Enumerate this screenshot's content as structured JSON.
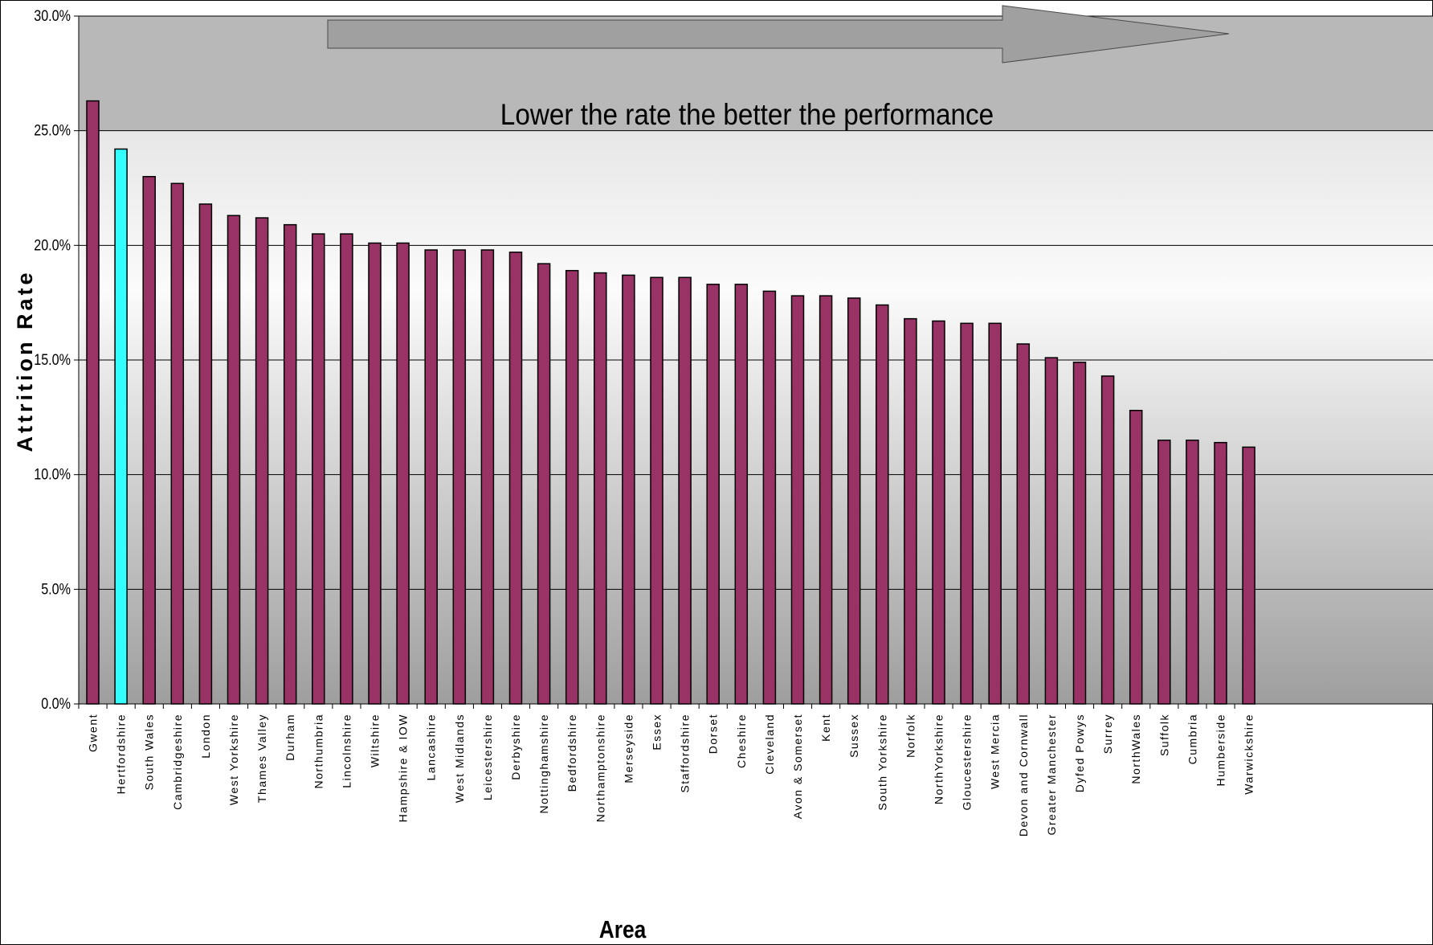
{
  "chart_data": {
    "type": "bar",
    "title": "",
    "xlabel": "Area",
    "ylabel": "Attrition Rate",
    "ylim": [
      0,
      0.3
    ],
    "yticks": [
      "0.0%",
      "5.0%",
      "10.0%",
      "15.0%",
      "20.0%",
      "25.0%",
      "30.0%"
    ],
    "grid": true,
    "annotation": "Lower the rate the better the performance",
    "colors": {
      "bar": "#993366",
      "highlight": "#33FFFF",
      "band": "#b8b8b8"
    },
    "highlight_category": "Hertfordshire",
    "categories": [
      "Gwent",
      "Hertfordshire",
      "South Wales",
      "Cambridgeshire",
      "London",
      "West Yorkshire",
      "Thames Valley",
      "Durham",
      "Northumbria",
      "Lincolnshire",
      "Wiltshire",
      "Hampshire & IOW",
      "Lancashire",
      "West Midlands",
      "Leicestershire",
      "Derbyshire",
      "Nottinghamshire",
      "Bedfordshire",
      "Northamptonshire",
      "Merseyside",
      "Essex",
      "Staffordshire",
      "Dorset",
      "Cheshire",
      "Cleveland",
      "Avon & Somerset",
      "Kent",
      "Sussex",
      "South Yorkshire",
      "Norfolk",
      "NorthYorkshire",
      "Gloucestershire",
      "West Mercia",
      "Devon and Cornwall",
      "Greater Manchester",
      "Dyfed Powys",
      "Surrey",
      "NorthWales",
      "Suffolk",
      "Cumbria",
      "Humberside",
      "Warwickshire"
    ],
    "values": [
      0.263,
      0.242,
      0.23,
      0.227,
      0.218,
      0.213,
      0.212,
      0.209,
      0.205,
      0.205,
      0.201,
      0.201,
      0.198,
      0.198,
      0.198,
      0.197,
      0.192,
      0.189,
      0.188,
      0.187,
      0.186,
      0.186,
      0.183,
      0.183,
      0.18,
      0.178,
      0.178,
      0.177,
      0.174,
      0.168,
      0.167,
      0.166,
      0.166,
      0.157,
      0.151,
      0.149,
      0.143,
      0.128,
      0.115,
      0.115,
      0.114,
      0.112
    ]
  }
}
